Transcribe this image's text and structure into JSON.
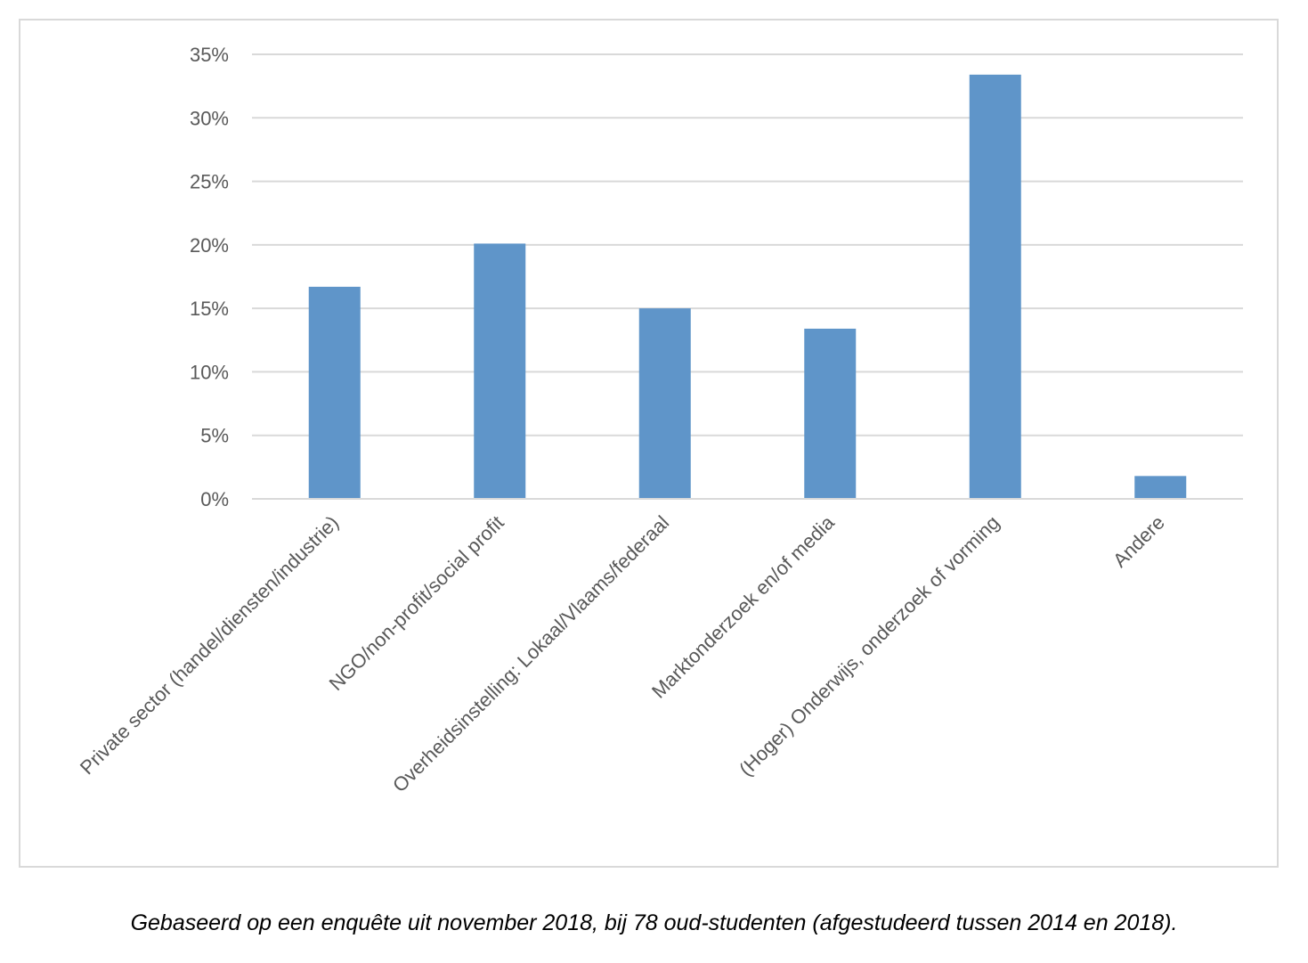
{
  "chart_data": {
    "type": "bar",
    "title": "",
    "xlabel": "",
    "ylabel": "",
    "categories": [
      "Private sector (handel/diensten/industrie)",
      "NGO/non-profit/social profit",
      "Overheidsinstelling: Lokaal/Vlaams/federaal",
      "Marktonderzoek en/of media",
      "(Hoger) Onderwijs, onderzoek of vorming",
      "Andere"
    ],
    "values": [
      16.7,
      20.1,
      15.0,
      13.4,
      33.4,
      1.8
    ],
    "ylim": [
      0,
      35
    ],
    "yticks": [
      0,
      5,
      10,
      15,
      20,
      25,
      30,
      35
    ],
    "ytick_labels": [
      "0%",
      "5%",
      "10%",
      "15%",
      "20%",
      "25%",
      "30%",
      "35%"
    ],
    "grid": true,
    "legend": "none",
    "bar_color": "#5f95c9",
    "grid_color": "#d9d9d9"
  },
  "caption": "Gebaseerd op een enquête uit november 2018, bij 78 oud-studenten (afgestudeerd tussen 2014 en 2018)."
}
